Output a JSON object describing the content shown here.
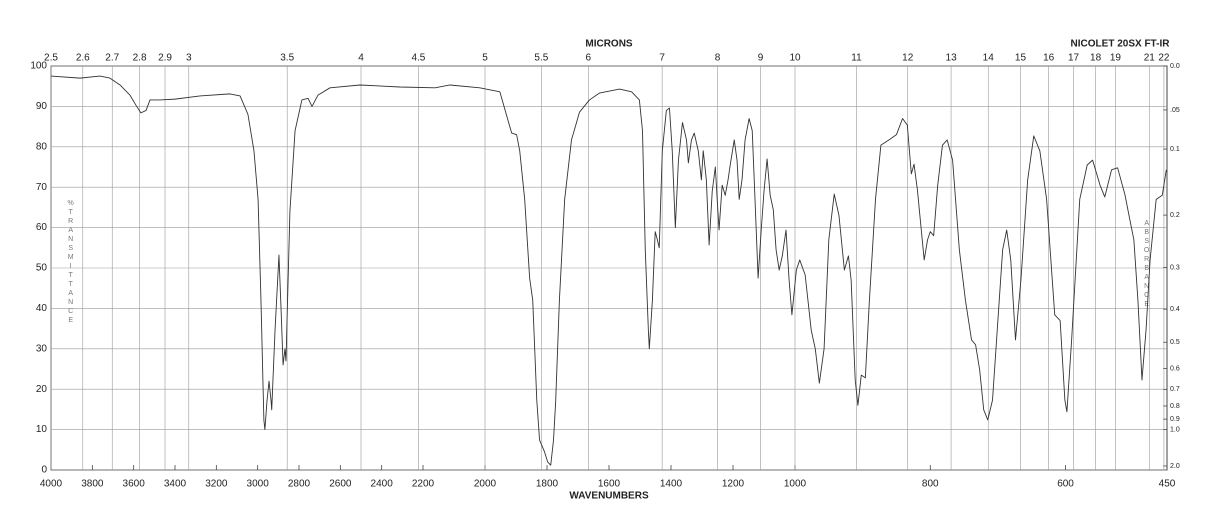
{
  "chart_data": {
    "type": "line",
    "top_axis_label": "MICRONS",
    "instrument": "NICOLET 20SX FT-IR",
    "xlabel": "WAVENUMBERS",
    "ylabel": "%TRANSMITTANCE",
    "y2label": "ABSORBANCE",
    "color": "#333333",
    "xlim": [
      4000,
      450
    ],
    "xsegments": [
      4000,
      2200,
      1000,
      450
    ],
    "xticks": [
      4000,
      3800,
      3600,
      3400,
      3200,
      3000,
      2800,
      2600,
      2400,
      2200,
      2000,
      1800,
      1600,
      1400,
      1200,
      1000,
      800,
      600,
      450
    ],
    "x2scale": "reciprocal",
    "x2ticks": [
      2.5,
      2.6,
      2.7,
      2.8,
      2.9,
      3,
      3.5,
      4,
      4.5,
      5,
      5.5,
      6,
      7,
      8,
      9,
      10,
      11,
      12,
      13,
      14,
      15,
      16,
      17,
      18,
      19,
      21,
      22
    ],
    "ylim": [
      0,
      100
    ],
    "yticks": [
      0,
      10,
      20,
      30,
      40,
      50,
      60,
      70,
      80,
      90,
      100
    ],
    "y2scale": "absorbance",
    "y2ticks": [
      {
        "value": 0,
        "label": "0.0"
      },
      {
        "value": 0.05,
        "label": ".05"
      },
      0.1,
      0.2,
      0.3,
      0.4,
      0.5,
      0.6,
      0.7,
      0.8,
      0.9,
      {
        "value": 1,
        "label": "1.0"
      },
      {
        "value": 2,
        "label": "2.0"
      }
    ],
    "grid": true,
    "x": [
      4000,
      3860,
      3763,
      3715,
      3666,
      3618,
      3589,
      3565,
      3540,
      3521,
      3473,
      3400,
      3279,
      3134,
      3085,
      3047,
      3018,
      2998,
      2984,
      2970,
      2965,
      2955,
      2945,
      2935,
      2932,
      2916,
      2897,
      2887,
      2877,
      2868,
      2863,
      2844,
      2819,
      2786,
      2756,
      2737,
      2708,
      2650,
      2505,
      2311,
      2161,
      2113,
      2017,
      1952,
      1926,
      1914,
      1898,
      1888,
      1872,
      1856,
      1846,
      1833,
      1824,
      1808,
      1798,
      1788,
      1779,
      1772,
      1760,
      1743,
      1721,
      1695,
      1663,
      1631,
      1566,
      1527,
      1502,
      1492,
      1483,
      1473,
      1470,
      1460,
      1451,
      1444,
      1438,
      1428,
      1415,
      1405,
      1396,
      1386,
      1376,
      1363,
      1350,
      1344,
      1334,
      1325,
      1312,
      1302,
      1296,
      1286,
      1277,
      1267,
      1257,
      1251,
      1245,
      1235,
      1225,
      1216,
      1209,
      1196,
      1187,
      1180,
      1171,
      1161,
      1148,
      1138,
      1129,
      1119,
      1109,
      1100,
      1090,
      1080,
      1070,
      1061,
      1051,
      1041,
      1029,
      1019,
      1010,
      998,
      993,
      985,
      976,
      970,
      964,
      957,
      950,
      942,
      935,
      927,
      921,
      917,
      911,
      907,
      902,
      896,
      890,
      881,
      873,
      861,
      850,
      841,
      834,
      828,
      824,
      819,
      809,
      804,
      800,
      795,
      789,
      782,
      775,
      767,
      757,
      748,
      739,
      733,
      727,
      721,
      715,
      708,
      701,
      693,
      687,
      681,
      674,
      666,
      656,
      647,
      638,
      628,
      616,
      608,
      601,
      598,
      591,
      579,
      568,
      560,
      549,
      542,
      532,
      523,
      512,
      505,
      499,
      493,
      487,
      481,
      475,
      466,
      457,
      451
    ],
    "values": [
      97.5,
      97,
      97.5,
      97,
      95.3,
      92.8,
      90.3,
      88.4,
      89,
      91.6,
      91.6,
      91.8,
      92.6,
      93.1,
      92.6,
      88,
      79,
      67,
      42,
      12.4,
      10,
      17,
      22,
      17,
      14.9,
      34.6,
      53.2,
      40,
      26,
      30,
      27,
      64,
      84,
      91.6,
      92,
      90,
      92.8,
      94.6,
      95.3,
      94.8,
      94.6,
      95.3,
      94.6,
      93.6,
      86.6,
      83.4,
      83,
      79,
      67,
      47.5,
      42,
      17.3,
      7.4,
      4.5,
      2,
      1.2,
      7.4,
      17,
      42,
      67,
      81.7,
      88.6,
      91.6,
      93.3,
      94.3,
      93.6,
      91.6,
      84,
      54.5,
      34.6,
      30,
      42,
      59,
      57,
      55,
      79,
      89,
      89.6,
      79,
      60,
      76.7,
      86,
      81.7,
      76,
      81.7,
      83.4,
      79,
      71.8,
      79,
      71.8,
      55.7,
      69,
      75,
      67,
      59.4,
      70.5,
      68,
      71.8,
      75.5,
      81.7,
      76.7,
      67,
      71.8,
      81.7,
      87,
      84,
      67,
      47.5,
      59.4,
      69,
      77,
      68,
      64.4,
      54.5,
      49.5,
      53,
      59.4,
      47,
      38.4,
      49.5,
      52,
      48.3,
      34.6,
      30,
      21.5,
      30,
      57,
      68.3,
      63,
      49.5,
      53,
      47,
      22.3,
      16,
      23.5,
      22.8,
      42,
      67,
      80.4,
      81.7,
      83,
      87,
      85.4,
      73.3,
      75.7,
      69.3,
      52,
      57,
      59,
      58,
      70.5,
      80.4,
      81.7,
      76.7,
      54.5,
      42,
      32.2,
      31,
      24.8,
      14.9,
      12.4,
      17.3,
      34.6,
      54.5,
      59.4,
      52,
      32.2,
      47,
      71.8,
      82.7,
      79,
      67,
      38.4,
      37,
      17.3,
      14.4,
      32.2,
      67,
      75.5,
      76.7,
      70.5,
      67.6,
      74.3,
      74.8,
      68,
      62,
      57,
      42,
      22.3,
      34.6,
      52,
      67,
      68,
      74.3
    ]
  }
}
